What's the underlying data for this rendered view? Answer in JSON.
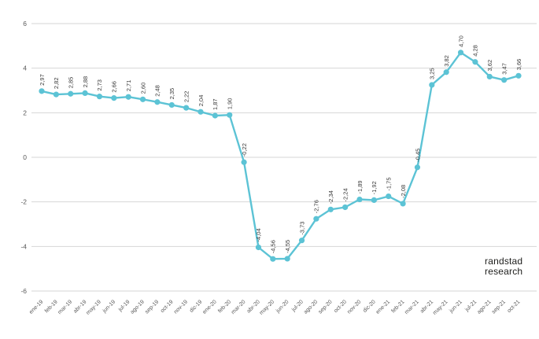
{
  "branding": {
    "line1": "randstad",
    "line2": "research"
  },
  "chart_data": {
    "type": "line",
    "title": "",
    "xlabel": "",
    "ylabel": "",
    "categories": [
      "ene-19",
      "feb-19",
      "mar-19",
      "abr-19",
      "may-19",
      "jun-19",
      "jul-19",
      "ago-19",
      "sep-19",
      "oct-19",
      "nov-19",
      "dic-19",
      "ene-20",
      "feb-20",
      "mar-20",
      "abr-20",
      "may-20",
      "jun-20",
      "jul-20",
      "ago-20",
      "sep-20",
      "oct-20",
      "nov-20",
      "dic-20",
      "ene-21",
      "feb-21",
      "mar-21",
      "abr-21",
      "may-21",
      "jun-21",
      "jul-21",
      "ago-21",
      "sep-21",
      "oct-21"
    ],
    "values": [
      2.97,
      2.82,
      2.85,
      2.88,
      2.73,
      2.66,
      2.71,
      2.6,
      2.48,
      2.35,
      2.22,
      2.04,
      1.87,
      1.9,
      -0.22,
      -4.04,
      -4.56,
      -4.55,
      -3.73,
      -2.76,
      -2.34,
      -2.24,
      -1.89,
      -1.92,
      -1.75,
      -2.08,
      -0.45,
      3.25,
      3.82,
      4.7,
      4.28,
      3.62,
      3.47,
      3.66
    ],
    "point_labels": [
      "2,97",
      "2,82",
      "2,85",
      "2,88",
      "2,73",
      "2,66",
      "2,71",
      "2,60",
      "2,48",
      "2,35",
      "2,22",
      "2,04",
      "1,87",
      "1,90",
      "-0,22",
      "-4,04",
      "-4,56",
      "-4,55",
      "-3,73",
      "-2,76",
      "-2,34",
      "-2,24",
      "-1,89",
      "-1,92",
      "-1,75",
      "-2,08",
      "-0,45",
      "3,25",
      "3,82",
      "4,70",
      "4,28",
      "3,62",
      "3,47",
      "3,66"
    ],
    "yticks": [
      6,
      4,
      2,
      0,
      -2,
      -4,
      -6
    ],
    "ylim": [
      -6,
      6
    ],
    "grid": true,
    "legend": false,
    "colors": {
      "line": "#5cc3d5",
      "marker": "#5cc3d5",
      "point_label": "#3b3b3b",
      "axis_label": "#595959",
      "gridline": "#d6d6d6"
    }
  }
}
